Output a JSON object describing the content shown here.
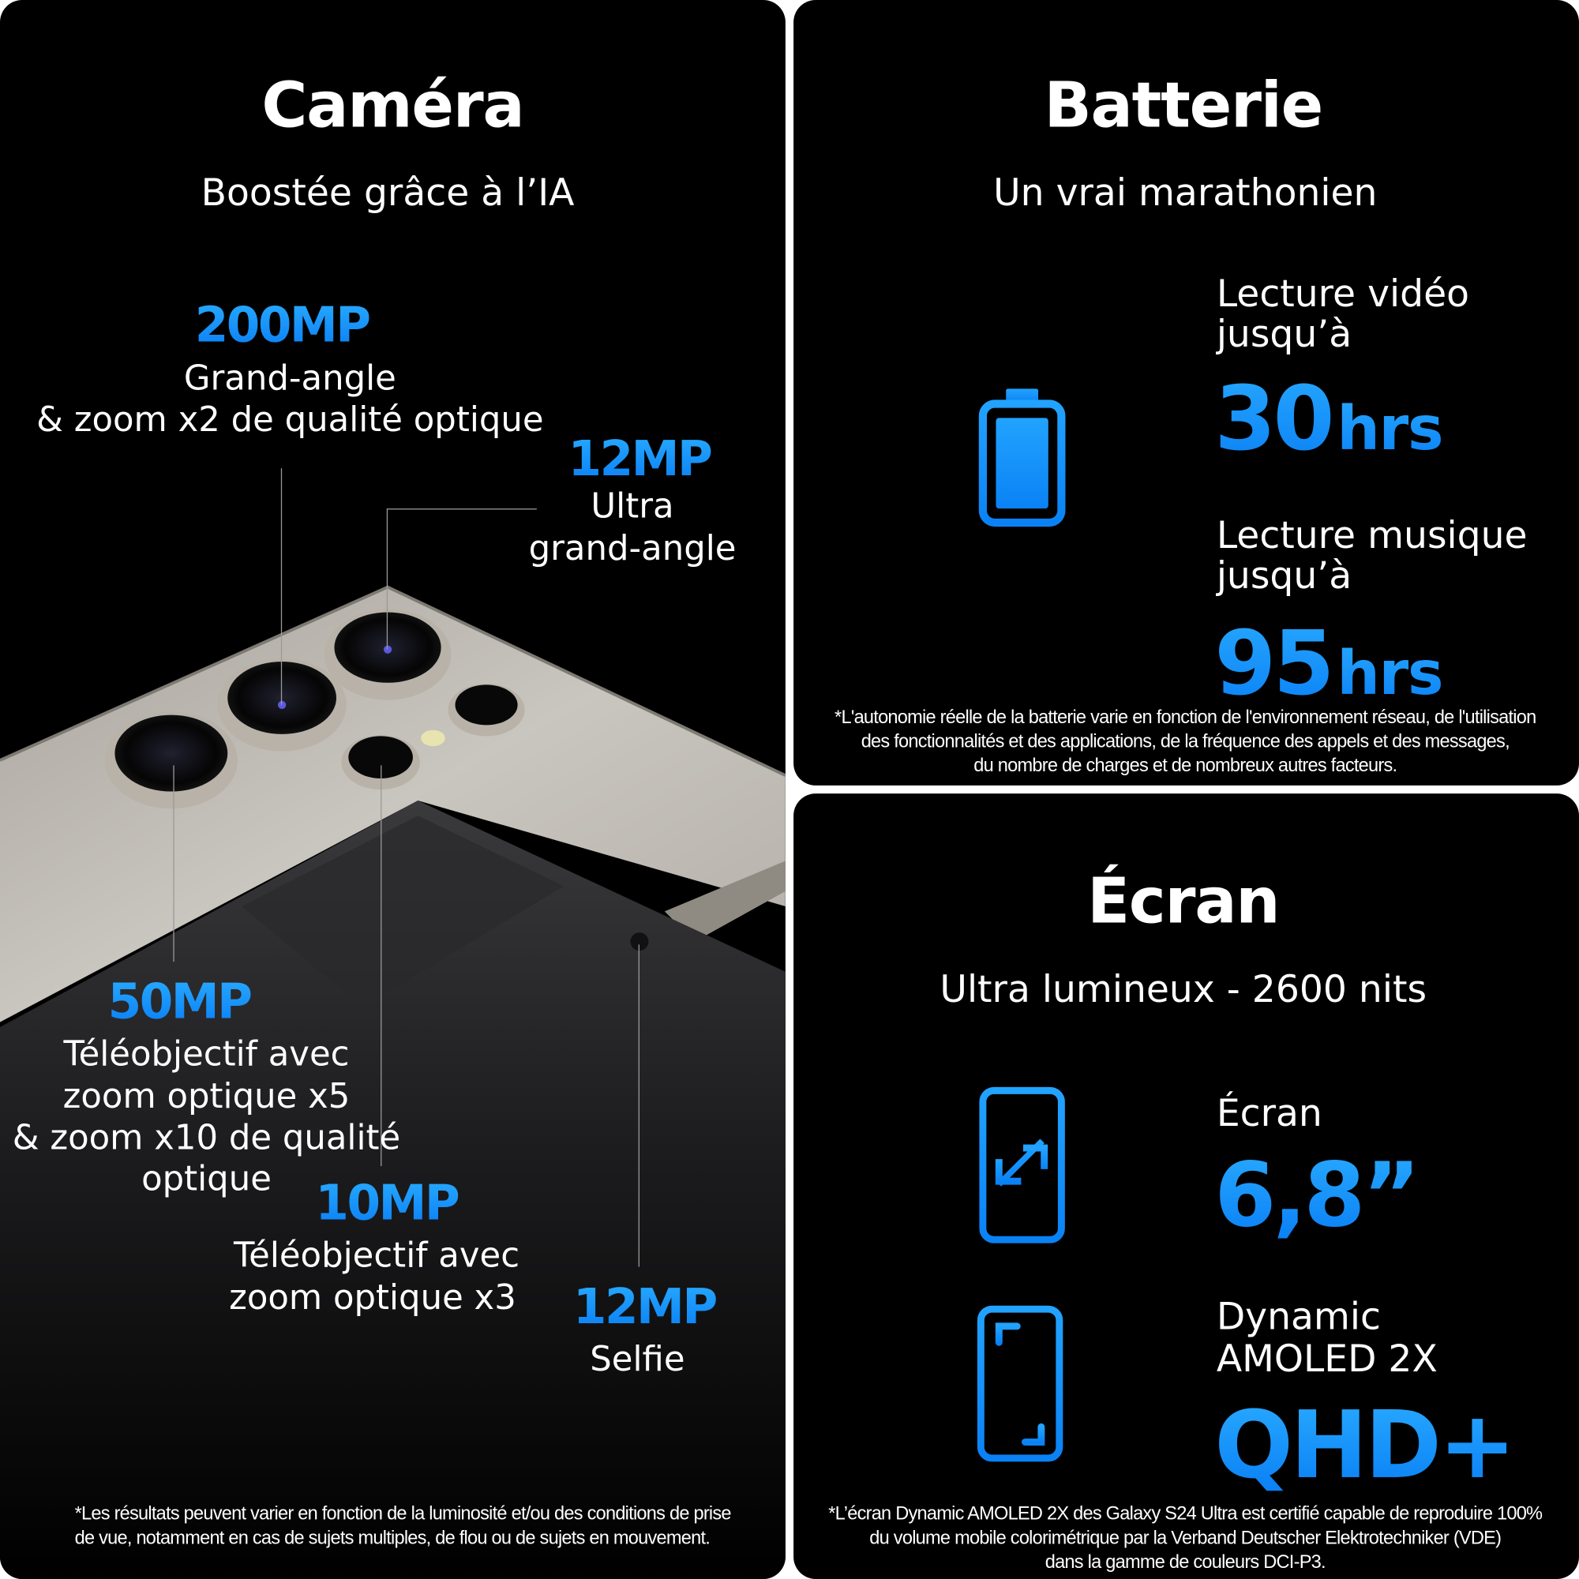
{
  "camera": {
    "title": "Caméra",
    "subtitle": "Boostée grâce à l’IA",
    "wide": {
      "mp": "200MP",
      "line1": "Grand-angle",
      "line2": "& zoom x2 de qualité optique"
    },
    "ultrawide": {
      "mp": "12MP",
      "line1": "Ultra",
      "line2": "grand-angle"
    },
    "tele5": {
      "mp": "50MP",
      "line1": "Téléobjectif avec",
      "line2": "zoom optique x5",
      "line3": "& zoom x10 de qualité",
      "line4": "optique"
    },
    "tele3": {
      "mp": "10MP",
      "line1": "Téléobjectif avec",
      "line2": "zoom optique x3"
    },
    "selfie": {
      "mp": "12MP",
      "line1": "Selfie"
    },
    "footnote": {
      "line1": "*Les résultats peuvent varier en fonction de la luminosité et/ou des conditions de prise",
      "line2": "de vue, notamment en cas de sujets multiples, de flou ou de sujets en mouvement."
    }
  },
  "battery": {
    "title": "Batterie",
    "subtitle": "Un vrai marathonien",
    "icon": "battery-full-icon",
    "video": {
      "line1": "Lecture vidéo",
      "line2": "jusqu’à",
      "value": "30",
      "unit": "hrs"
    },
    "music": {
      "line1": "Lecture musique",
      "line2": "jusqu’à",
      "value": "95",
      "unit": "hrs"
    },
    "footnote": {
      "line1": "*L'autonomie réelle de la batterie varie en fonction de l'environnement réseau, de l'utilisation",
      "line2": "des fonctionnalités et des applications, de la fréquence des appels et des messages,",
      "line3": "du nombre de charges et de nombreux autres facteurs."
    }
  },
  "screen": {
    "title": "Écran",
    "subtitle": "Ultra lumineux - 2600 nits",
    "size": {
      "icon": "phone-diagonal-arrow-icon",
      "label": "Écran",
      "value": "6,8”"
    },
    "display": {
      "icon": "phone-corners-icon",
      "line1": "Dynamic",
      "line2": "AMOLED 2X",
      "value": "QHD+"
    },
    "footnote": {
      "line1": "*L’écran Dynamic AMOLED 2X des Galaxy S24 Ultra est certifié capable de reproduire 100%",
      "line2": "du volume mobile colorimétrique par la Verband Deutscher Elektrotechniker (VDE)",
      "line3": "dans la gamme de couleurs DCI-P3."
    }
  },
  "colors": {
    "accent": "#1E96FF",
    "background": "#000000",
    "gutter": "#FFFFFF"
  }
}
